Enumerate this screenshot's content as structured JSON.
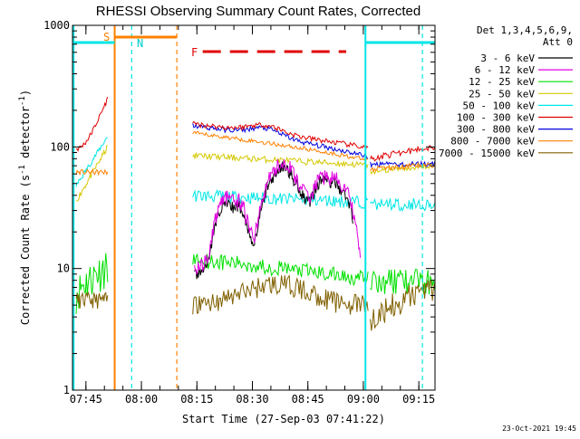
{
  "chart_data": {
    "type": "line",
    "title": "RHESSI Observing Summary Count Rates, Corrected",
    "xlabel": "Start Time (27-Sep-03 07:41:22)",
    "ylabel": "Corrected Count Rate (s",
    "ylabel_sup": "-1",
    "ylabel_mid": " detector",
    "ylabel_end": ")",
    "y_scale": "log",
    "ylim": [
      1,
      1000
    ],
    "xlim_minutes": [
      0,
      98
    ],
    "y_ticks": [
      {
        "v": 1,
        "label": "1"
      },
      {
        "v": 10,
        "label": "10"
      },
      {
        "v": 100,
        "label": "100"
      },
      {
        "v": 1000,
        "label": "1000"
      }
    ],
    "x_ticks": [
      {
        "v": 3.63,
        "label": "07:45"
      },
      {
        "v": 18.63,
        "label": "08:00"
      },
      {
        "v": 33.63,
        "label": "08:15"
      },
      {
        "v": 48.63,
        "label": "08:30"
      },
      {
        "v": 63.63,
        "label": "08:45"
      },
      {
        "v": 78.63,
        "label": "09:00"
      },
      {
        "v": 93.63,
        "label": "09:15"
      }
    ],
    "legend_header": [
      "Det 1,3,4,5,6,9,",
      "Att 0"
    ],
    "series": [
      {
        "name": "3 - 6 keV",
        "color": "#000000"
      },
      {
        "name": "6 - 12 keV",
        "color": "#e000e0"
      },
      {
        "name": "12 - 25 keV",
        "color": "#00e000"
      },
      {
        "name": "25 - 50 keV",
        "color": "#d4c800"
      },
      {
        "name": "50 - 100 keV",
        "color": "#00e6e6"
      },
      {
        "name": "100 - 300 keV",
        "color": "#e00000"
      },
      {
        "name": "300 - 800 keV",
        "color": "#0000e0"
      },
      {
        "name": "800 - 7000 keV",
        "color": "#ff8000"
      },
      {
        "name": "7000 - 15000 keV",
        "color": "#806000"
      }
    ],
    "flags": {
      "S_label": "S",
      "N_label": "N",
      "F_label": "F"
    },
    "timestamp": "23-Oct-2021 19:45"
  }
}
